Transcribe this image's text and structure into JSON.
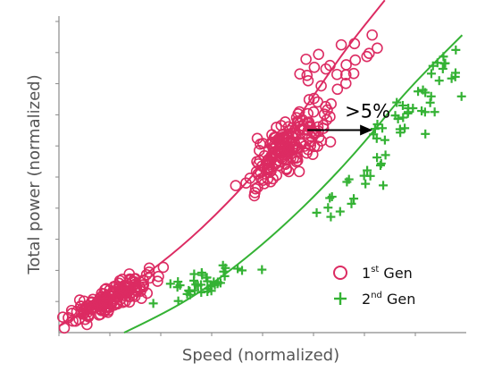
{
  "colors": {
    "gen1": "#dc2b62",
    "gen2": "#34b234",
    "axis": "#8a8a8a",
    "arrow": "#000000"
  },
  "chart_data": {
    "type": "scatter",
    "title": "",
    "xlabel": "Speed (normalized)",
    "ylabel": "Total power (normalized)",
    "xlim": [
      0,
      10
    ],
    "ylim": [
      0,
      10
    ],
    "x_ticks": [
      0,
      1,
      2,
      3,
      4,
      5,
      6,
      7
    ],
    "y_ticks": [
      0,
      1,
      2,
      3,
      4,
      5,
      6,
      7,
      8,
      9
    ],
    "grid": false,
    "legend_position": "bottom-right",
    "series": [
      {
        "key": "gen1",
        "name_main": "1",
        "name_sup": "st",
        "name_tail": " Gen",
        "marker": "circle",
        "trend_line": [
          [
            0,
            0.2
          ],
          [
            1,
            0.9
          ],
          [
            2,
            1.7
          ],
          [
            3,
            2.7
          ],
          [
            4,
            3.9
          ],
          [
            5,
            5.3
          ],
          [
            6,
            7.0
          ],
          [
            7,
            8.9
          ],
          [
            8,
            10.5
          ]
        ],
        "clusters": [
          {
            "cx": 1.3,
            "cy": 1.1,
            "sx": 0.55,
            "sy": 0.35,
            "n": 160,
            "tilt": 0.65
          },
          {
            "cx": 5.6,
            "cy": 5.8,
            "sx": 0.5,
            "sy": 0.75,
            "n": 180,
            "tilt": 1.0
          },
          {
            "cx": 6.9,
            "cy": 8.3,
            "sx": 0.5,
            "sy": 0.9,
            "n": 22,
            "tilt": 0.4
          }
        ]
      },
      {
        "key": "gen2",
        "name_main": "2",
        "name_sup": "nd",
        "name_tail": " Gen",
        "marker": "plus",
        "trend_line": [
          [
            1.6,
            0
          ],
          [
            2.5,
            0.55
          ],
          [
            3.5,
            1.3
          ],
          [
            4.5,
            2.25
          ],
          [
            5.5,
            3.35
          ],
          [
            6.5,
            4.6
          ],
          [
            7.5,
            6.0
          ],
          [
            8.5,
            7.6
          ],
          [
            9.9,
            9.4
          ]
        ],
        "clusters": [
          {
            "cx": 3.6,
            "cy": 1.6,
            "sx": 0.55,
            "sy": 0.35,
            "n": 38,
            "tilt": 0.35
          },
          {
            "cx": 7.1,
            "cy": 4.4,
            "sx": 0.55,
            "sy": 0.55,
            "n": 16,
            "tilt": 0.8
          },
          {
            "cx": 8.5,
            "cy": 6.8,
            "sx": 0.6,
            "sy": 0.8,
            "n": 34,
            "tilt": 0.8
          },
          {
            "cx": 9.4,
            "cy": 8.3,
            "sx": 0.35,
            "sy": 0.6,
            "n": 10,
            "tilt": 0.6
          }
        ]
      }
    ],
    "annotations": [
      {
        "text": ">5%",
        "arrow_from": [
          6.1,
          6.4
        ],
        "arrow_to": [
          7.7,
          6.4
        ]
      }
    ]
  }
}
